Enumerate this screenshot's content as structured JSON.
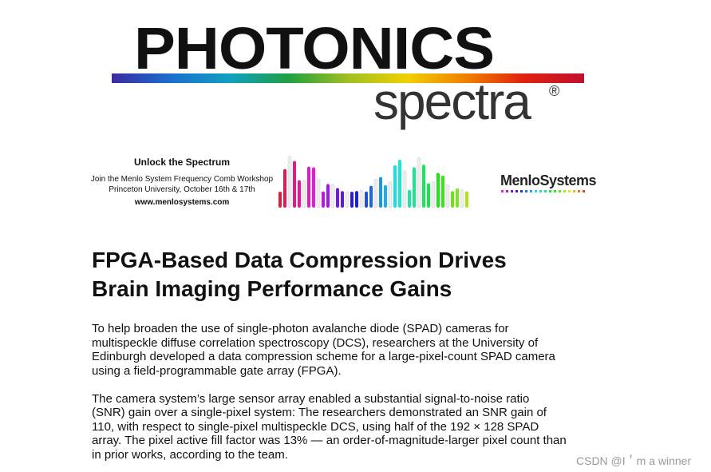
{
  "logo": {
    "title": "PHOTONICS",
    "subtitle": "spectra",
    "mark": "®"
  },
  "banner": {
    "headline": "Unlock the Spectrum",
    "lines": [
      "Join the Menlo System Frequency Comb Workshop",
      "Princeton University, October 16th & 17th"
    ],
    "url": "www.menlosystems.com",
    "brand": "MenloSystems"
  },
  "article": {
    "title_lines": [
      "FPGA-Based Data Compression Drives",
      "Brain Imaging Performance Gains"
    ],
    "paragraphs": [
      [
        "To help broaden the use of single-photon avalanche diode (SPAD) cameras for",
        "multispeckle diffuse correlation spectroscopy (DCS), researchers at the University of",
        "Edinburgh developed a data compression scheme for a large-pixel-count SPAD camera",
        "using a field-programmable gate array (FPGA)."
      ],
      [
        "The camera system’s large sensor array enabled a substantial signal-to-noise ratio",
        "(SNR) gain over a single-pixel system: The researchers demonstrated an SNR gain of",
        "110, with respect to single-pixel multispeckle DCS, using half of the 192 × 128 SPAD",
        "array. The pixel active fill factor was 13% — an order-of-magnitude-larger pixel count than",
        "in prior works, according to the team."
      ]
    ]
  },
  "watermark": "CSDN @I＇m a winner"
}
